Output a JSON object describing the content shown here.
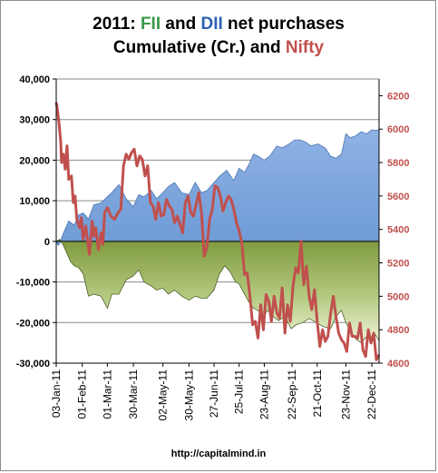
{
  "chart_data": {
    "type": "area",
    "title": {
      "line1": [
        {
          "text": "2011: ",
          "color": "#000000"
        },
        {
          "text": "FII",
          "color": "#3a9a4a"
        },
        {
          "text": " and ",
          "color": "#000000"
        },
        {
          "text": "DII",
          "color": "#2e62b0"
        },
        {
          "text": " net purchases",
          "color": "#000000"
        }
      ],
      "line2": [
        {
          "text": "Cumulative (Cr.) and ",
          "color": "#000000"
        },
        {
          "text": "Nifty",
          "color": "#c0504d"
        }
      ]
    },
    "footer": "http://capitalmind.in",
    "left_axis": {
      "min": -30000,
      "max": 40000,
      "ticks": [
        40000,
        30000,
        20000,
        10000,
        0,
        -10000,
        -20000,
        -30000
      ],
      "tick_labels": [
        "40,000",
        "30,000",
        "20,000",
        "10,000",
        "0",
        "-10,000",
        "-20,000",
        "-30,000"
      ],
      "color": "#000000"
    },
    "right_axis": {
      "min": 4600,
      "max": 6300,
      "ticks": [
        6200,
        6000,
        5800,
        5600,
        5400,
        5200,
        5000,
        4800,
        4600
      ],
      "tick_labels": [
        "6200",
        "6000",
        "5800",
        "5600",
        "5400",
        "5200",
        "5000",
        "4800",
        "4600"
      ],
      "color": "#c0504d"
    },
    "x_axis": {
      "min": 0,
      "max": 360,
      "ticks": [
        0,
        29,
        57,
        86,
        119,
        148,
        176,
        204,
        232,
        263,
        291,
        323,
        352
      ],
      "tick_labels": [
        "03-Jan-11",
        "01-Feb-11",
        "01-Mar-11",
        "30-Mar-11",
        "02-May-11",
        "30-May-11",
        "27-Jun-11",
        "25-Jul-11",
        "23-Aug-11",
        "22-Sep-11",
        "21-Oct-11",
        "23-Nov-11",
        "22-Dec-11"
      ]
    },
    "colors": {
      "fii": "#6f9bd6",
      "dii": "#8ea74f",
      "nifty": "#c0504d"
    },
    "series": [
      {
        "key": "fii",
        "axis": "left",
        "x": [
          0,
          2,
          4,
          8,
          14,
          20,
          25,
          30,
          36,
          42,
          50,
          57,
          62,
          70,
          78,
          86,
          92,
          98,
          106,
          112,
          119,
          125,
          132,
          140,
          148,
          155,
          162,
          168,
          176,
          182,
          190,
          198,
          204,
          210,
          215,
          220,
          225,
          232,
          238,
          246,
          252,
          260,
          266,
          272,
          278,
          284,
          292,
          300,
          306,
          312,
          318,
          323,
          328,
          334,
          340,
          346,
          352,
          356,
          360
        ],
        "values": [
          0,
          -1000,
          -500,
          2000,
          5000,
          4000,
          6500,
          7000,
          5500,
          9000,
          9500,
          11000,
          12000,
          14000,
          10500,
          8500,
          11500,
          11000,
          12500,
          10500,
          12000,
          13500,
          14500,
          12000,
          11500,
          14500,
          12000,
          12500,
          14500,
          16000,
          17500,
          15000,
          18000,
          17000,
          19000,
          21500,
          21000,
          20000,
          21000,
          23500,
          23000,
          24000,
          25000,
          25000,
          24500,
          23500,
          24000,
          23000,
          21000,
          20500,
          21500,
          26500,
          25500,
          26000,
          27000,
          26500,
          27500,
          27300,
          27500
        ]
      },
      {
        "key": "dii",
        "axis": "left",
        "x": [
          0,
          4,
          8,
          12,
          16,
          20,
          25,
          30,
          36,
          42,
          50,
          57,
          62,
          70,
          78,
          86,
          92,
          98,
          106,
          112,
          119,
          125,
          132,
          140,
          148,
          155,
          162,
          168,
          176,
          182,
          188,
          194,
          200,
          204,
          210,
          215,
          220,
          225,
          230,
          236,
          242,
          248,
          255,
          262,
          268,
          275,
          282,
          290,
          298,
          306,
          312,
          318,
          323,
          328,
          334,
          340,
          346,
          352,
          356,
          360
        ],
        "values": [
          0,
          500,
          -1000,
          -3000,
          -5000,
          -6000,
          -6500,
          -8000,
          -13500,
          -13000,
          -13500,
          -16500,
          -13000,
          -13000,
          -9500,
          -8500,
          -7000,
          -10000,
          -11000,
          -12000,
          -11500,
          -13000,
          -12000,
          -13500,
          -14500,
          -13500,
          -14000,
          -14000,
          -12000,
          -8000,
          -6000,
          -7500,
          -10000,
          -10500,
          -13000,
          -15000,
          -16500,
          -17000,
          -18500,
          -17000,
          -18500,
          -19500,
          -18500,
          -21500,
          -20500,
          -20000,
          -19000,
          -20000,
          -21000,
          -21500,
          -18500,
          -17000,
          -20000,
          -22000,
          -24000,
          -25000,
          -23500,
          -24000,
          -23000,
          -24500
        ]
      },
      {
        "key": "nifty",
        "axis": "right",
        "x": [
          0,
          1,
          3,
          5,
          6,
          8,
          10,
          12,
          14,
          17,
          19,
          21,
          23,
          26,
          28,
          30,
          33,
          35,
          37,
          40,
          42,
          44,
          47,
          50,
          52,
          54,
          57,
          61,
          65,
          69,
          72,
          75,
          78,
          81,
          84,
          87,
          90,
          93,
          96,
          99,
          102,
          105,
          108,
          111,
          114,
          117,
          120,
          123,
          126,
          129,
          132,
          135,
          138,
          141,
          144,
          147,
          150,
          153,
          156,
          159,
          162,
          165,
          168,
          171,
          174,
          177,
          180,
          183,
          186,
          189,
          192,
          195,
          198,
          201,
          204,
          207,
          210,
          213,
          216,
          219,
          222,
          225,
          228,
          231,
          234,
          237,
          240,
          243,
          246,
          249,
          252,
          255,
          258,
          261,
          264,
          267,
          270,
          273,
          276,
          279,
          282,
          285,
          288,
          291,
          294,
          297,
          300,
          303,
          306,
          309,
          312,
          315,
          318,
          321,
          324,
          327,
          330,
          333,
          336,
          339,
          342,
          345,
          348,
          351,
          354,
          357,
          360
        ],
        "values": [
          6160,
          6130,
          6040,
          5930,
          5800,
          5850,
          5760,
          5900,
          5700,
          5720,
          5560,
          5600,
          5460,
          5410,
          5470,
          5340,
          5420,
          5330,
          5250,
          5450,
          5360,
          5410,
          5280,
          5380,
          5310,
          5500,
          5530,
          5480,
          5460,
          5500,
          5520,
          5780,
          5850,
          5820,
          5860,
          5880,
          5780,
          5840,
          5820,
          5720,
          5780,
          5560,
          5540,
          5460,
          5560,
          5480,
          5490,
          5580,
          5540,
          5520,
          5440,
          5480,
          5430,
          5380,
          5560,
          5600,
          5500,
          5480,
          5550,
          5620,
          5500,
          5240,
          5290,
          5460,
          5520,
          5660,
          5650,
          5600,
          5510,
          5560,
          5600,
          5580,
          5520,
          5440,
          5390,
          5320,
          5130,
          5140,
          5000,
          4830,
          4850,
          4750,
          4950,
          4800,
          5010,
          4970,
          4850,
          5000,
          4900,
          4870,
          5050,
          4780,
          4950,
          4850,
          5060,
          5170,
          5140,
          5330,
          5070,
          5180,
          5000,
          4920,
          5040,
          4850,
          4700,
          4800,
          4730,
          4760,
          4900,
          5000,
          4880,
          4780,
          4740,
          4720,
          4670,
          4840,
          4760,
          4760,
          4750,
          4840,
          4680,
          4640,
          4800,
          4720,
          4780,
          4620,
          4650
        ]
      }
    ]
  }
}
